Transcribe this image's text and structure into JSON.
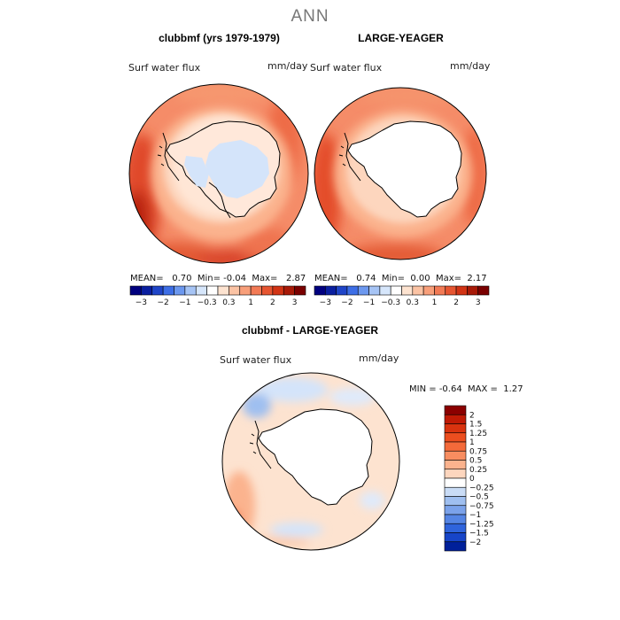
{
  "figure": {
    "title": "ANN"
  },
  "panels": [
    {
      "title": "clubbmf (yrs 1979-1979)",
      "variable": "Surf water flux",
      "units": "mm/day",
      "stats": {
        "mean_label": "MEAN=",
        "mean": "0.70",
        "min_label": "Min=",
        "min": "-0.04",
        "max_label": "Max=",
        "max": "2.87"
      }
    },
    {
      "title": "LARGE-YEAGER",
      "variable": "Surf water flux",
      "units": "mm/day",
      "stats": {
        "mean_label": "MEAN=",
        "mean": "0.74",
        "min_label": "Min=",
        "min": "0.00",
        "max_label": "Max=",
        "max": "2.17"
      }
    },
    {
      "title": "clubbmf - LARGE-YEAGER",
      "variable": "Surf water flux",
      "units": "mm/day",
      "stats": {
        "min_label": "MIN =",
        "min": "-0.64",
        "max_label": "MAX =",
        "max": "1.27"
      }
    }
  ],
  "colorbar_abs": {
    "tick_labels": [
      "-3",
      "-2",
      "-1",
      "-0.3",
      "0.3",
      "1",
      "2",
      "3"
    ],
    "colors": [
      "#00007f",
      "#0a1fa0",
      "#1f45c8",
      "#3d6ee6",
      "#6c98ef",
      "#a6c4f5",
      "#d6e6fb",
      "#ffffff",
      "#fde3d0",
      "#fbc3a4",
      "#f89f7a",
      "#f27a55",
      "#e65531",
      "#d23415",
      "#a81a08",
      "#7a0000"
    ]
  },
  "colorbar_diff": {
    "labels": [
      "2",
      "1.5",
      "1.25",
      "1",
      "0.75",
      "0.5",
      "0.25",
      "0",
      "-0.25",
      "-0.5",
      "-0.75",
      "-1",
      "-1.25",
      "-1.5",
      "-2"
    ],
    "colors": [
      "#8b0000",
      "#c01a05",
      "#d9330f",
      "#ec4e1f",
      "#f46a3a",
      "#f88d60",
      "#fbb38e",
      "#fdd6be",
      "#ffffff",
      "#c9dcf6",
      "#9fbff0",
      "#7ba2ea",
      "#5585e4",
      "#2f64dc",
      "#1745c8",
      "#00209a"
    ]
  },
  "map": {
    "land_color": "#ffffff",
    "coast_color": "#000000"
  }
}
